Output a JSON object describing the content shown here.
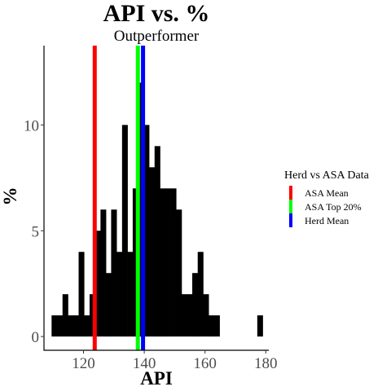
{
  "chart_data": {
    "type": "bar",
    "title": "API  vs.  %",
    "subtitle": "Outperformer",
    "xlabel": "API",
    "ylabel": "%",
    "xlim": [
      107,
      181
    ],
    "ylim": [
      -0.65,
      13.75
    ],
    "x_ticks": [
      120,
      140,
      160,
      180
    ],
    "y_ticks": [
      0,
      5,
      10
    ],
    "bin_width": 1.78,
    "bars": [
      {
        "x0": 109.5,
        "count": 1
      },
      {
        "x0": 111.3,
        "count": 1
      },
      {
        "x0": 113.1,
        "count": 2
      },
      {
        "x0": 114.9,
        "count": 1
      },
      {
        "x0": 116.6,
        "count": 1
      },
      {
        "x0": 118.4,
        "count": 4
      },
      {
        "x0": 120.2,
        "count": 1
      },
      {
        "x0": 122.0,
        "count": 2
      },
      {
        "x0": 123.8,
        "count": 5
      },
      {
        "x0": 125.6,
        "count": 6
      },
      {
        "x0": 127.3,
        "count": 3
      },
      {
        "x0": 129.1,
        "count": 6
      },
      {
        "x0": 130.9,
        "count": 4
      },
      {
        "x0": 132.7,
        "count": 10
      },
      {
        "x0": 134.5,
        "count": 4
      },
      {
        "x0": 136.2,
        "count": 7
      },
      {
        "x0": 138.0,
        "count": 12
      },
      {
        "x0": 139.8,
        "count": 10
      },
      {
        "x0": 141.6,
        "count": 8
      },
      {
        "x0": 143.4,
        "count": 9
      },
      {
        "x0": 145.1,
        "count": 7
      },
      {
        "x0": 146.9,
        "count": 7
      },
      {
        "x0": 148.7,
        "count": 7
      },
      {
        "x0": 150.5,
        "count": 6
      },
      {
        "x0": 152.3,
        "count": 2
      },
      {
        "x0": 154.0,
        "count": 2
      },
      {
        "x0": 155.8,
        "count": 3
      },
      {
        "x0": 157.6,
        "count": 4
      },
      {
        "x0": 159.4,
        "count": 2
      },
      {
        "x0": 161.2,
        "count": 1
      },
      {
        "x0": 163.0,
        "count": 1
      },
      {
        "x0": 177.2,
        "count": 1
      }
    ],
    "vlines": [
      {
        "name": "ASA Mean",
        "x": 123.7,
        "color": "#ff0000"
      },
      {
        "name": "ASA Top 20%",
        "x": 137.9,
        "color": "#00ff00"
      },
      {
        "name": "Herd Mean",
        "x": 139.6,
        "color": "#0000ff"
      }
    ],
    "legend": {
      "title": "Herd vs ASA Data",
      "position": "right",
      "entries": [
        "ASA Mean",
        "ASA Top 20%",
        "Herd Mean"
      ]
    },
    "bar_color": "#000000",
    "grid": false
  }
}
